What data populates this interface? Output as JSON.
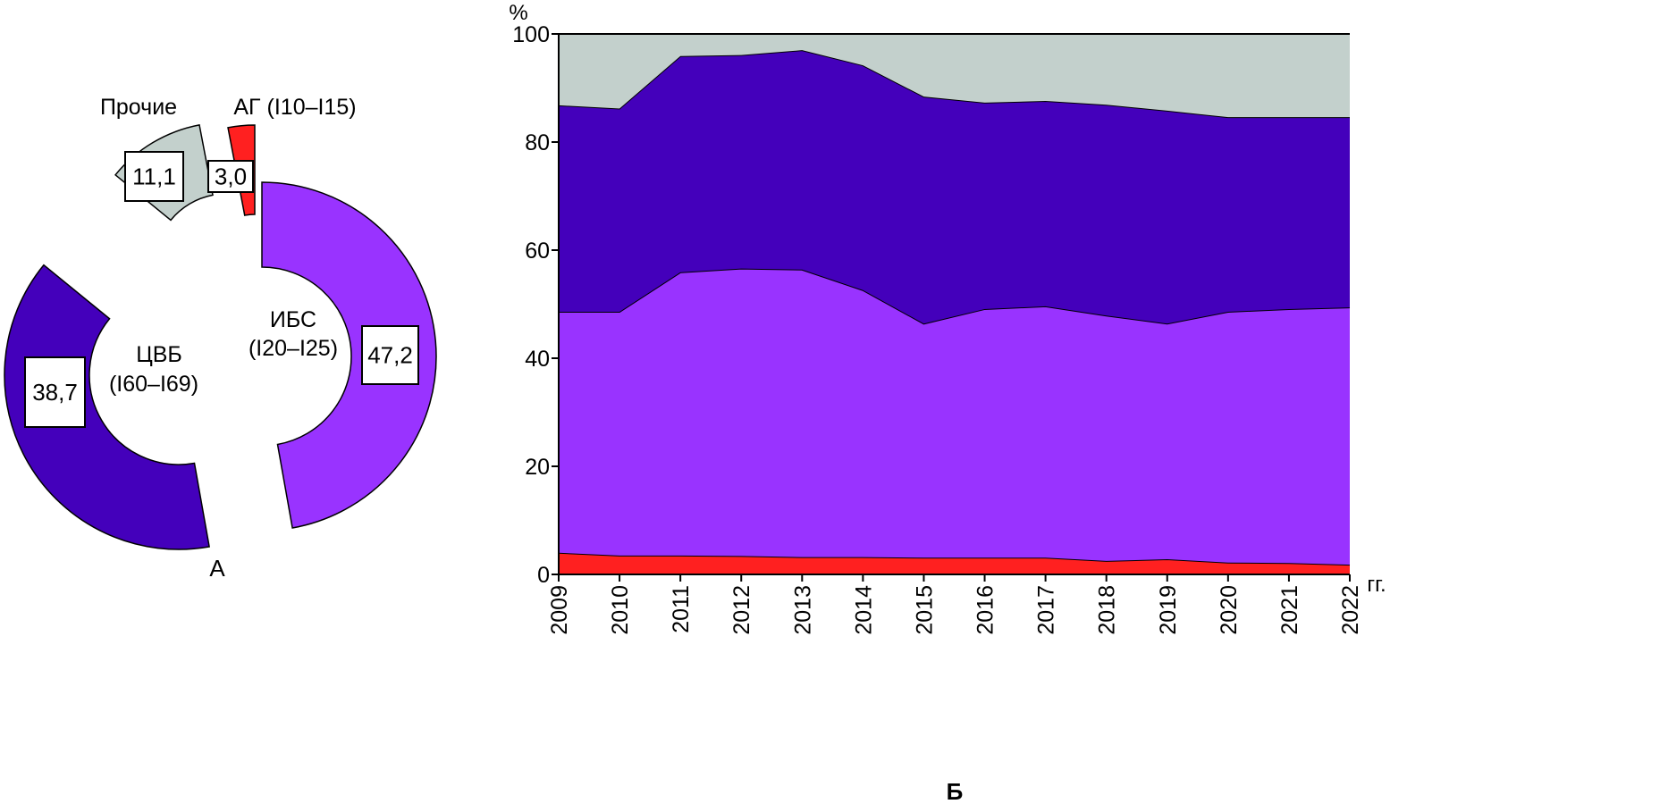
{
  "chart_data": [
    {
      "type": "pie",
      "donut": true,
      "exploded": true,
      "panel_label": "А",
      "slices": [
        {
          "label": "ИБС",
          "code": "(I20–I25)",
          "value": 47.2,
          "value_label": "47,2",
          "color": "#9933ff"
        },
        {
          "label": "ЦВБ",
          "code": "(I60–I69)",
          "value": 38.7,
          "value_label": "38,7",
          "color": "#4400bb"
        },
        {
          "label": "Прочие",
          "code": "",
          "value": 11.1,
          "value_label": "11,1",
          "color": "#c3d0cc"
        },
        {
          "label": "АГ (I10–I15)",
          "code": "",
          "value": 3.0,
          "value_label": "3,0",
          "color": "#ff2020"
        }
      ]
    },
    {
      "type": "area",
      "stacked": true,
      "panel_label": "Б",
      "ylabel": "%",
      "xlabel": "гг.",
      "ylim": [
        0,
        100
      ],
      "yticks": [
        0,
        20,
        40,
        60,
        80,
        100
      ],
      "x": [
        2009,
        2010,
        2011,
        2012,
        2013,
        2014,
        2015,
        2016,
        2017,
        2018,
        2019,
        2020,
        2021,
        2022
      ],
      "grid": false,
      "series": [
        {
          "key": "ag",
          "color": "#ff2020",
          "values": [
            4.0,
            3.5,
            3.5,
            3.4,
            3.2,
            3.2,
            3.1,
            3.1,
            3.1,
            2.5,
            2.8,
            2.2,
            2.1,
            1.8
          ]
        },
        {
          "key": "ibs",
          "color": "#9933ff",
          "values": [
            44.6,
            45.1,
            52.4,
            53.2,
            53.2,
            49.4,
            43.3,
            46.0,
            46.5,
            45.4,
            43.6,
            46.4,
            47.0,
            47.6
          ]
        },
        {
          "key": "cvb",
          "color": "#4400bb",
          "values": [
            38.2,
            37.6,
            40.0,
            39.5,
            40.6,
            41.6,
            42.0,
            38.2,
            38.0,
            39.0,
            39.4,
            36.0,
            35.5,
            35.2
          ]
        },
        {
          "key": "other",
          "color": "#c3d0cc",
          "values": [
            13.2,
            13.8,
            4.1,
            3.9,
            3.0,
            5.8,
            11.6,
            12.7,
            12.4,
            13.1,
            14.2,
            15.4,
            15.4,
            15.4
          ]
        }
      ]
    }
  ]
}
